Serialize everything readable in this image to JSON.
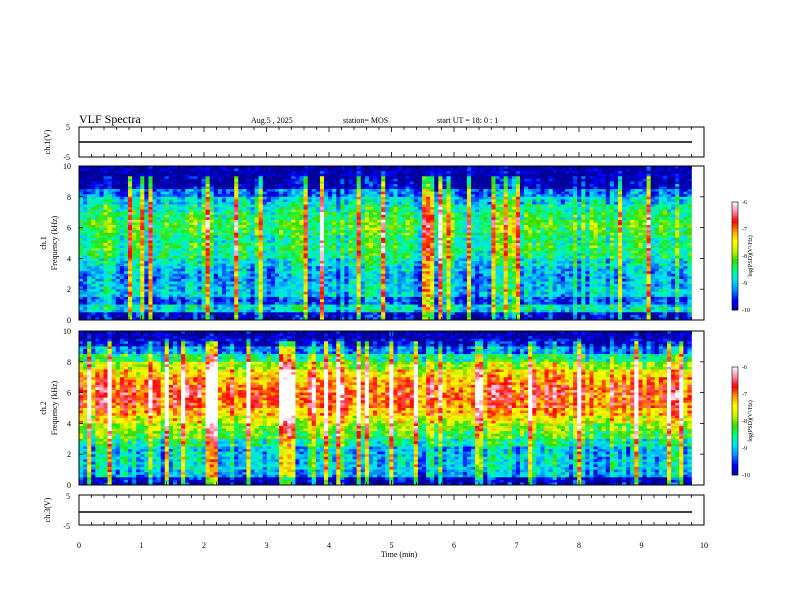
{
  "header": {
    "title": "VLF Spectra",
    "date": "Aug.5 , 2025",
    "station": "station= MOS",
    "start": "start UT = 18: 0 : 1"
  },
  "colorbar": {
    "label": "log(PSD)(V²/Hz)",
    "ticks": [
      "-6",
      "-7",
      "-8",
      "-9",
      "-10"
    ],
    "colors": [
      "#000099",
      "#0000ff",
      "#0088ff",
      "#00ddff",
      "#00ff88",
      "#33dd00",
      "#ccee00",
      "#ffff00",
      "#ff9900",
      "#ff0000",
      "#ff88aa",
      "#ffffff"
    ]
  },
  "chart_data": [
    {
      "type": "line",
      "name": "ch1-waveform",
      "ylabel": "ch.1(V)",
      "ylim": [
        -5,
        5
      ],
      "yticks": [
        "5",
        "-5"
      ],
      "xlim": [
        0,
        10
      ],
      "values": [
        0
      ]
    },
    {
      "type": "heatmap",
      "name": "ch1-spectrogram",
      "ylabel": "ch.1\nFrequency (kHz)",
      "ylim": [
        0,
        10
      ],
      "yticks": [
        "10",
        "8",
        "6",
        "4",
        "2",
        "0"
      ],
      "xlim": [
        0,
        10
      ],
      "data_end_min": 9.8,
      "zlim": [
        -10,
        -6
      ],
      "profile_db": [
        -9.8,
        -8.8,
        -9.4,
        -8.9,
        -9.0,
        -9.1,
        -9.0,
        -8.8,
        -8.5,
        -8.4,
        -8.5,
        -8.3,
        -8.2,
        -8.4,
        -8.6,
        -8.9,
        -9.3,
        -9.9,
        -10.0,
        -10.0
      ]
    },
    {
      "type": "heatmap",
      "name": "ch2-spectrogram",
      "ylabel": "ch.2\nFrequency (kHz)",
      "ylim": [
        0,
        10
      ],
      "yticks": [
        "10",
        "8",
        "6",
        "4",
        "2",
        "0"
      ],
      "xlim": [
        0,
        10
      ],
      "data_end_min": 9.8,
      "zlim": [
        -10,
        -6
      ],
      "profile_db": [
        -9.9,
        -9.1,
        -8.9,
        -8.9,
        -9.0,
        -8.6,
        -8.2,
        -8.0,
        -7.6,
        -7.2,
        -6.9,
        -6.8,
        -6.9,
        -7.1,
        -7.4,
        -7.9,
        -8.5,
        -9.2,
        -9.8,
        -10.0
      ]
    },
    {
      "type": "line",
      "name": "ch3-waveform",
      "ylabel": "ch.3(V)",
      "ylim": [
        -5,
        5
      ],
      "yticks": [
        "5",
        "-5"
      ],
      "xlim": [
        0,
        10
      ],
      "values": [
        0
      ]
    }
  ],
  "xaxis": {
    "label": "Time (min)",
    "ticks": [
      "0",
      "1",
      "2",
      "3",
      "4",
      "5",
      "6",
      "7",
      "8",
      "9",
      "10"
    ]
  }
}
